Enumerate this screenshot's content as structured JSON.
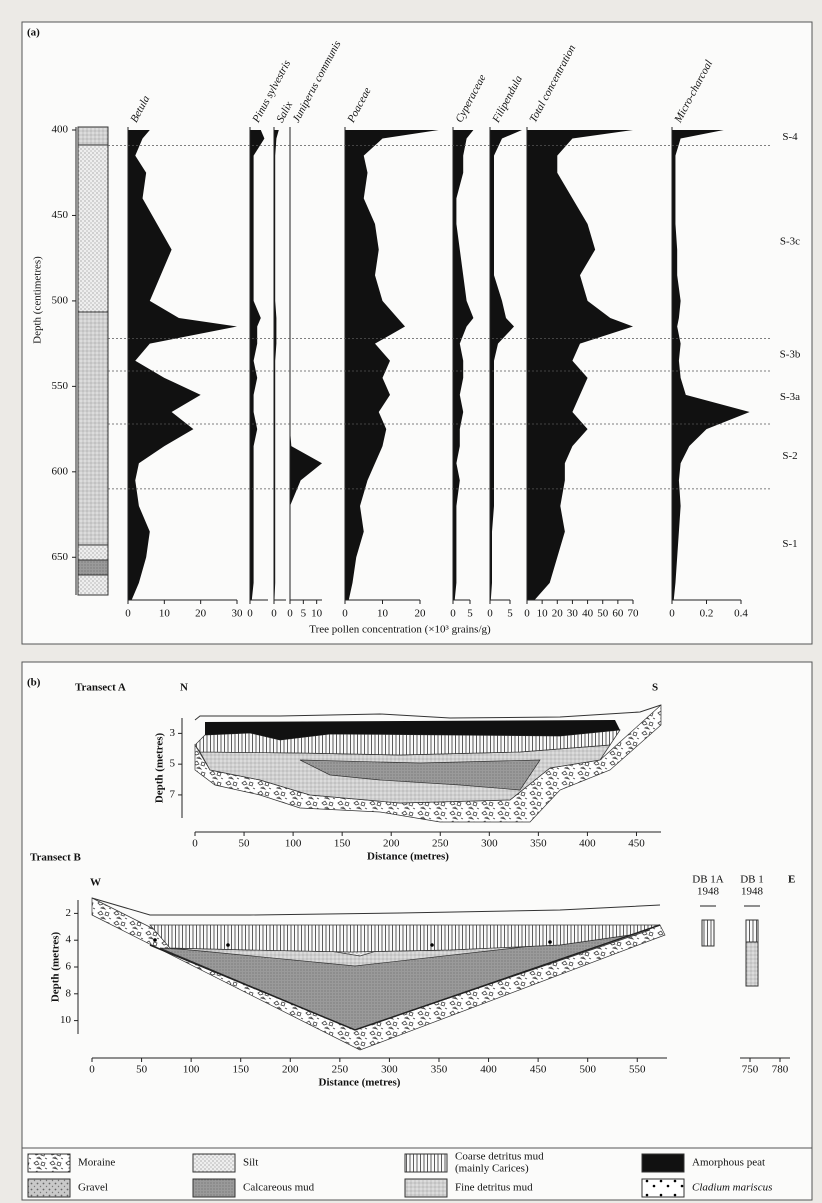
{
  "panel_a": {
    "label": "(a)",
    "y_axis_label": "Depth (centimetres)",
    "x_axis_label": "Tree pollen concentration (×10³ grains/g)",
    "depth_lim": [
      400,
      675
    ],
    "depth_ticks": [
      400,
      450,
      500,
      550,
      600,
      650
    ],
    "depths": [
      400,
      405,
      415,
      425,
      440,
      455,
      470,
      485,
      500,
      510,
      515,
      525,
      535,
      545,
      555,
      565,
      575,
      585,
      595,
      605,
      620,
      635,
      650,
      665,
      675
    ],
    "columns": [
      {
        "name": "Betula",
        "xlim": [
          0,
          30
        ],
        "xticks": [
          0,
          10,
          20,
          30
        ],
        "values": [
          6,
          4,
          2,
          5,
          4,
          8,
          12,
          9,
          6,
          14,
          30,
          6,
          2,
          10,
          20,
          12,
          18,
          10,
          3,
          2,
          3,
          6,
          5,
          3,
          1
        ]
      },
      {
        "name": "Pinus sylvestris",
        "xlim": [
          0,
          5
        ],
        "xticks": [
          0
        ],
        "values": [
          3,
          4,
          1,
          1,
          1,
          1,
          1,
          1,
          1,
          3,
          2,
          2,
          1,
          2,
          1,
          1,
          2,
          1,
          1,
          1,
          1,
          1,
          1,
          1,
          0.5
        ]
      },
      {
        "name": "Salix",
        "xlim": [
          0,
          5
        ],
        "xticks": [
          0
        ],
        "values": [
          2,
          1,
          0.5,
          0.5,
          0.5,
          0.5,
          0.5,
          0.5,
          0.5,
          1,
          1,
          1,
          0.5,
          0.5,
          0.5,
          0.5,
          0.5,
          0.5,
          0.5,
          0.5,
          0.5,
          0.5,
          0.5,
          0.5,
          0.2
        ]
      },
      {
        "name": "Juniperus communis",
        "xlim": [
          0,
          12
        ],
        "xticks": [
          0,
          5,
          10
        ],
        "values": [
          0,
          0,
          0,
          0,
          0,
          0,
          0,
          0,
          0,
          0,
          0,
          0,
          0,
          0,
          0,
          0,
          0,
          0.5,
          12,
          4,
          0,
          0,
          0,
          0,
          0
        ]
      },
      {
        "name": "Poaceae",
        "xlim": [
          0,
          20
        ],
        "xticks": [
          0,
          10,
          20
        ],
        "values": [
          25,
          10,
          5,
          6,
          5,
          8,
          9,
          8,
          10,
          14,
          16,
          8,
          12,
          10,
          12,
          9,
          11,
          10,
          8,
          6,
          4,
          5,
          3,
          2,
          1
        ]
      },
      {
        "name": "Cyperaceae",
        "xlim": [
          0,
          5
        ],
        "xticks": [
          0,
          5
        ],
        "values": [
          6,
          4,
          3,
          3,
          1,
          1,
          2,
          3,
          4,
          6,
          4,
          2,
          3,
          3,
          2,
          3,
          2,
          2,
          1,
          2,
          1,
          1,
          1,
          1,
          0.5
        ]
      },
      {
        "name": "Filipendula",
        "xlim": [
          0,
          5
        ],
        "xticks": [
          0,
          5
        ],
        "values": [
          8,
          3,
          1,
          1,
          1,
          1,
          1,
          1,
          3,
          4,
          6,
          2,
          1,
          1,
          1,
          1,
          1,
          1,
          1,
          1,
          1,
          0.5,
          0.5,
          0.5,
          0.2
        ]
      },
      {
        "name": "Total concentration",
        "xlim": [
          0,
          70
        ],
        "xticks": [
          0,
          10,
          20,
          30,
          40,
          50,
          60,
          70
        ],
        "values": [
          70,
          30,
          20,
          20,
          30,
          40,
          45,
          35,
          40,
          55,
          70,
          35,
          30,
          40,
          35,
          30,
          40,
          30,
          25,
          25,
          22,
          25,
          20,
          15,
          5
        ]
      },
      {
        "name": "Micro-charcoal",
        "xlim": [
          0,
          0.4
        ],
        "xticks": [
          0,
          0.2,
          0.4
        ],
        "values": [
          0.3,
          0.05,
          0.02,
          0.02,
          0.02,
          0.02,
          0.03,
          0.03,
          0.05,
          0.04,
          0.03,
          0.05,
          0.04,
          0.05,
          0.08,
          0.45,
          0.2,
          0.1,
          0.05,
          0.04,
          0.05,
          0.04,
          0.03,
          0.02,
          0.01
        ]
      }
    ],
    "zone_boundaries": [
      409,
      522,
      541,
      572,
      610
    ],
    "zones": [
      "S-4",
      "S-3c",
      "S-3b",
      "S-3a",
      "S-2",
      "S-1"
    ]
  },
  "panel_b": {
    "label": "(b)",
    "y_label": "Depth (metres)",
    "x_label": "Distance (metres)",
    "transect_a": {
      "title": "Transect A",
      "left": "N",
      "right": "S",
      "xlim": [
        0,
        475
      ],
      "xticks": [
        0,
        50,
        100,
        150,
        200,
        250,
        300,
        350,
        400,
        450
      ],
      "ylim": [
        2,
        8.5
      ],
      "yticks": [
        3,
        5,
        7
      ]
    },
    "transect_b": {
      "title": "Transect B",
      "left": "W",
      "right": "E",
      "xlim": [
        0,
        580
      ],
      "xticks": [
        0,
        50,
        100,
        150,
        200,
        250,
        300,
        350,
        400,
        450,
        500,
        550
      ],
      "ylim": [
        1,
        11
      ],
      "yticks": [
        2,
        4,
        6,
        8,
        10
      ],
      "core_xlim": [
        740,
        790
      ],
      "core_xticks": [
        750,
        780
      ],
      "cores": [
        {
          "name": "DB 1A",
          "year": "1948"
        },
        {
          "name": "DB 1",
          "year": "1948"
        }
      ]
    }
  },
  "legend": [
    {
      "lines": [
        "Moraine"
      ]
    },
    {
      "lines": [
        "Silt"
      ]
    },
    {
      "lines": [
        "Coarse detritus mud",
        "(mainly Carices)"
      ]
    },
    {
      "lines": [
        "Amorphous peat"
      ]
    },
    {
      "lines": [
        "Gravel"
      ]
    },
    {
      "lines": [
        "Calcareous mud"
      ]
    },
    {
      "lines": [
        "Fine detritus mud"
      ]
    },
    {
      "lines": [
        "Cladium mariscus"
      ]
    }
  ]
}
